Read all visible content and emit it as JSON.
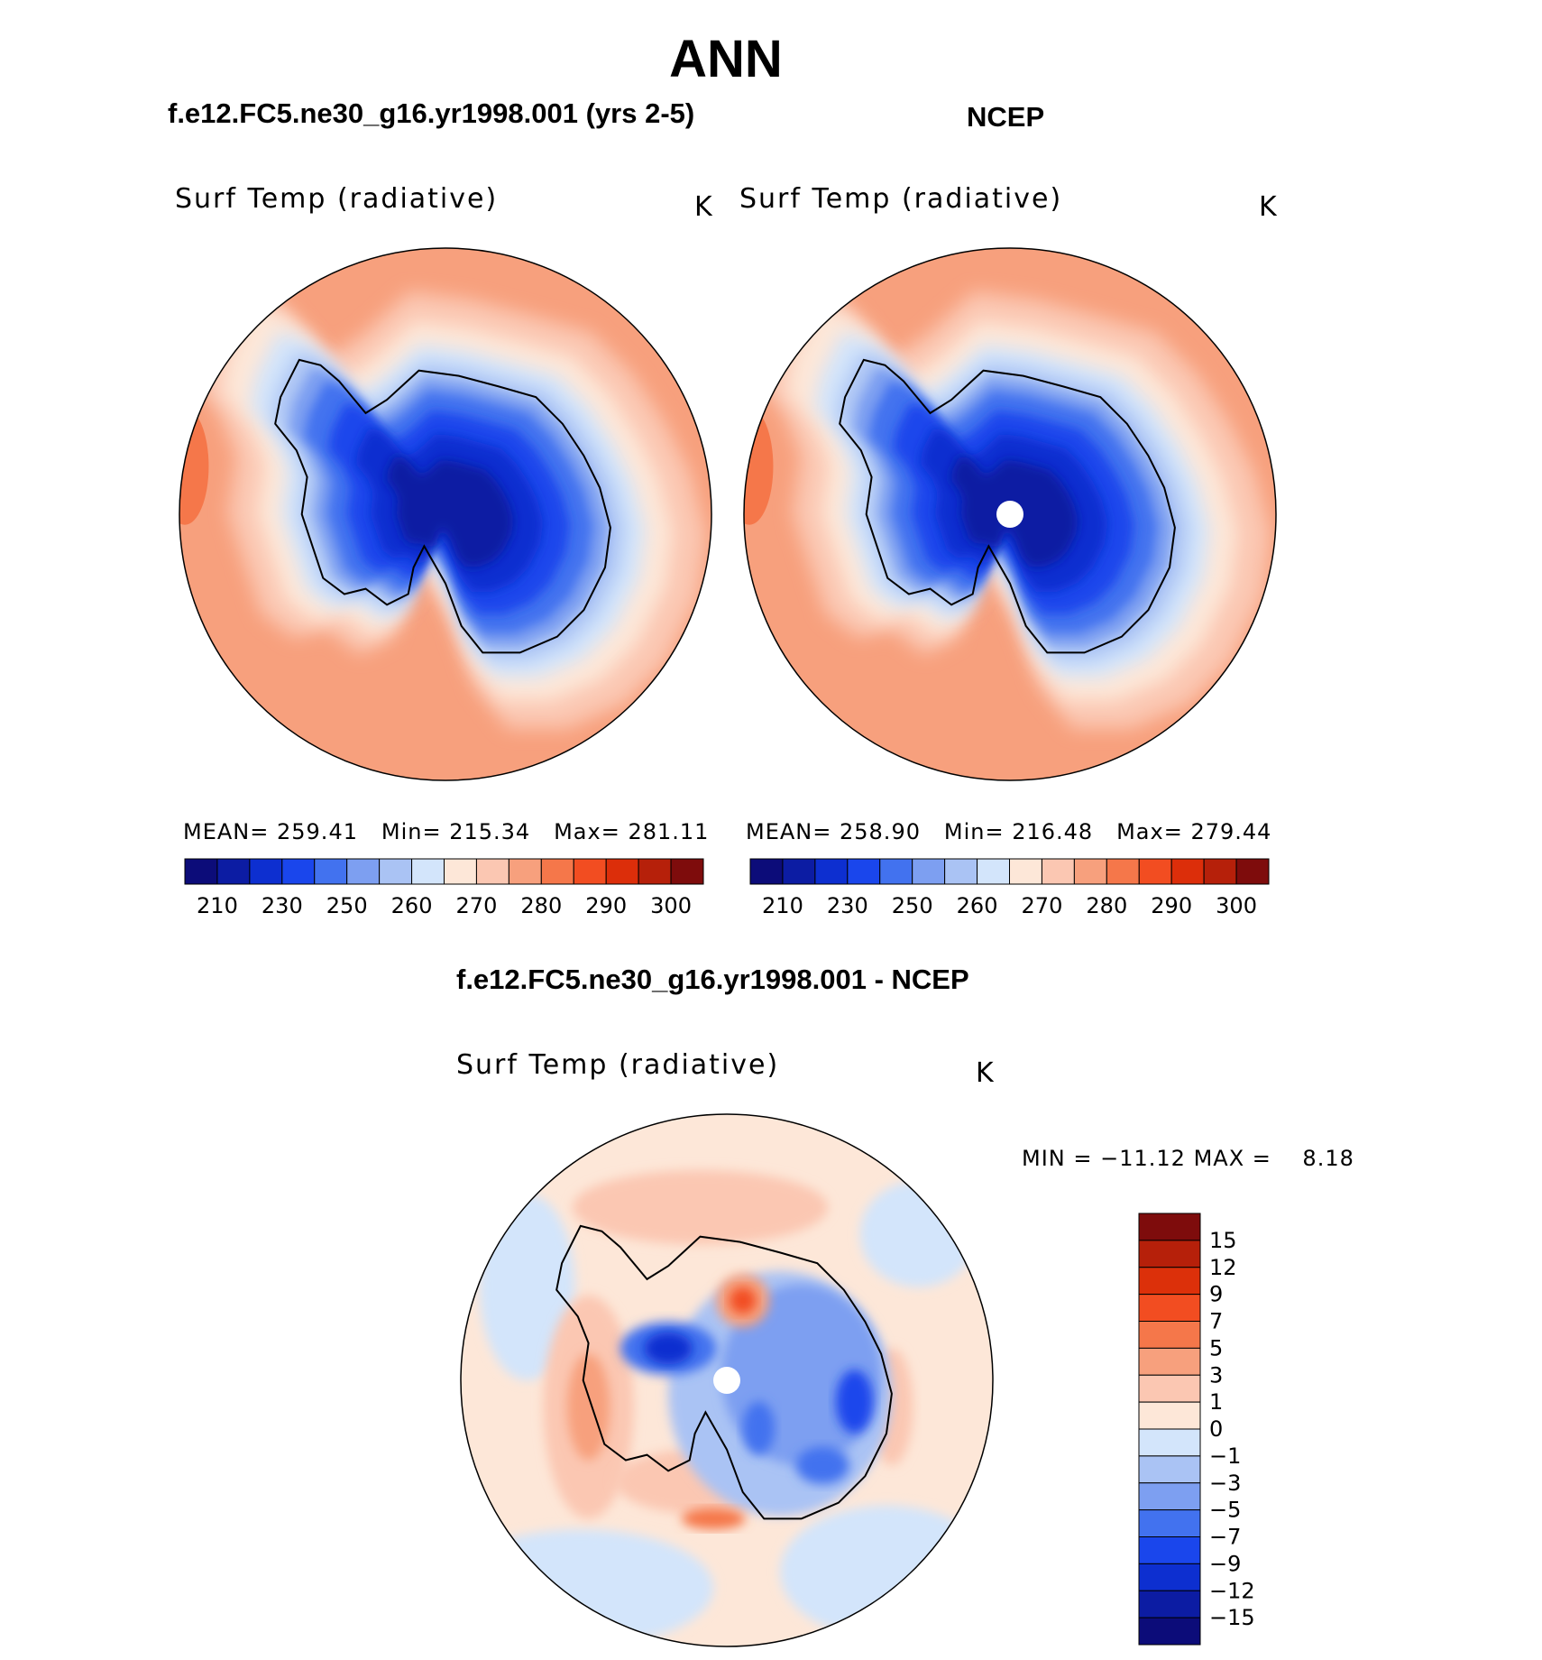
{
  "figure": {
    "title": "ANN",
    "case_title": "f.e12.FC5.ne30_g16.yr1998.001 (yrs 2-5)",
    "obs_title": "NCEP",
    "diff_title": "f.e12.FC5.ne30_g16.yr1998.001 - NCEP"
  },
  "chart_data": [
    {
      "type": "heatmap",
      "projection": "south-polar-stereographic",
      "variable": "Surf Temp (radiative)",
      "units": "K",
      "stats": {
        "mean_label": "MEAN=",
        "mean": "259.41",
        "min_label": "Min=",
        "min": "215.34",
        "max_label": "Max=",
        "max": "281.11"
      },
      "colorbar_ticks": [
        "210",
        "230",
        "250",
        "260",
        "270",
        "280",
        "290",
        "300"
      ],
      "colorbar_colors": [
        "#0c0c79",
        "#0c1ca3",
        "#0d2fd0",
        "#1a46ec",
        "#4272ef",
        "#7d9ff1",
        "#aac3f4",
        "#d3e5fb",
        "#fde7d8",
        "#fbc7b2",
        "#f7a07d",
        "#f5774a",
        "#f24d21",
        "#dc2e0a",
        "#b6200a",
        "#7e0c0c"
      ],
      "features": {
        "south_pole_missing_marker": false
      }
    },
    {
      "type": "heatmap",
      "projection": "south-polar-stereographic",
      "variable": "Surf Temp (radiative)",
      "units": "K",
      "stats": {
        "mean_label": "MEAN=",
        "mean": "258.90",
        "min_label": "Min=",
        "min": "216.48",
        "max_label": "Max=",
        "max": "279.44"
      },
      "colorbar_ticks": [
        "210",
        "230",
        "250",
        "260",
        "270",
        "280",
        "290",
        "300"
      ],
      "colorbar_colors": [
        "#0c0c79",
        "#0c1ca3",
        "#0d2fd0",
        "#1a46ec",
        "#4272ef",
        "#7d9ff1",
        "#aac3f4",
        "#d3e5fb",
        "#fde7d8",
        "#fbc7b2",
        "#f7a07d",
        "#f5774a",
        "#f24d21",
        "#dc2e0a",
        "#b6200a",
        "#7e0c0c"
      ],
      "features": {
        "south_pole_missing_marker": true
      }
    },
    {
      "type": "heatmap",
      "projection": "south-polar-stereographic",
      "variable": "Surf Temp (radiative)",
      "units": "K",
      "stats_line": {
        "min_label": "MIN =",
        "min": "−11.12",
        "max_label": "MAX =",
        "max": "8.18"
      },
      "colorbar_ticks_top_to_bottom": [
        "15",
        "12",
        "9",
        "7",
        "5",
        "3",
        "1",
        "0",
        "−1",
        "−3",
        "−5",
        "−7",
        "−9",
        "−12",
        "−15"
      ],
      "colorbar_colors_top_to_bottom": [
        "#7e0c0c",
        "#b6200a",
        "#dc300a",
        "#f24d21",
        "#f5774a",
        "#f7a07d",
        "#fbc7b2",
        "#fde7d8",
        "#d3e5fb",
        "#aac3f4",
        "#7d9ff1",
        "#4272ef",
        "#1a46ec",
        "#0d2fd0",
        "#0c1ca3",
        "#0c0c79"
      ],
      "features": {
        "south_pole_missing_marker": true
      }
    }
  ]
}
